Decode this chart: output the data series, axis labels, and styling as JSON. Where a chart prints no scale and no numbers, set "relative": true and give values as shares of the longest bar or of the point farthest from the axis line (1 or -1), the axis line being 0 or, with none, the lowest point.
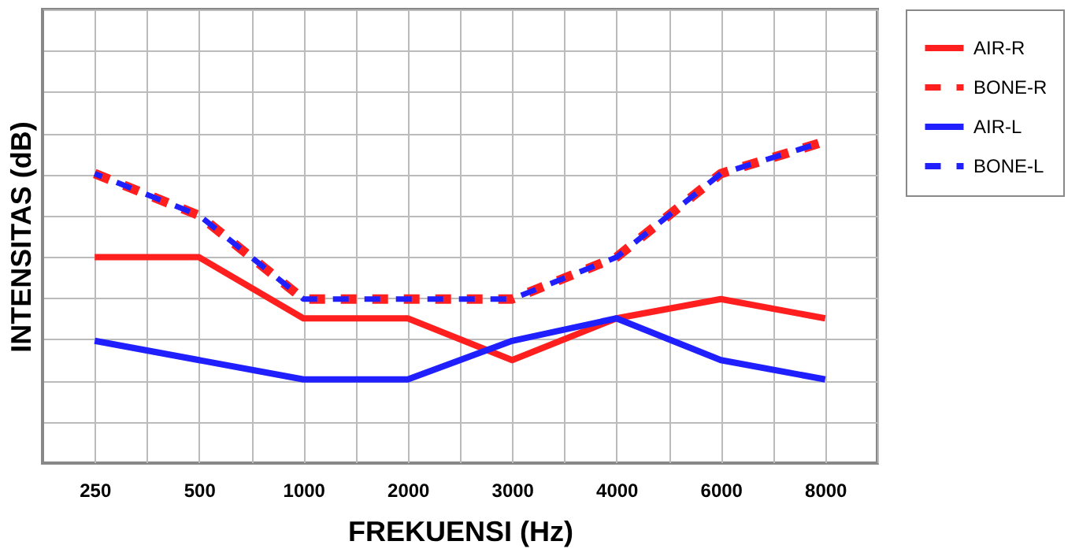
{
  "chart_data": {
    "type": "line",
    "xlabel": "FREKUENSI (Hz)",
    "ylabel": "INTENSITAS (dB)",
    "relative": true,
    "grid": true,
    "legend": "right",
    "marker": "none",
    "categories": [
      "250",
      "500",
      "1000",
      "2000",
      "3000",
      "4000",
      "6000",
      "8000"
    ],
    "series": [
      {
        "name": "AIR-R",
        "color": "#ff1f1f",
        "line_style": "solid",
        "values": [
          0.64,
          0.64,
          0.45,
          0.45,
          0.32,
          0.45,
          0.51,
          0.45
        ]
      },
      {
        "name": "BONE-R",
        "color": "#ff1f1f",
        "line_style": "dashed",
        "values": [
          0.9,
          0.77,
          0.51,
          0.51,
          0.51,
          0.64,
          0.9,
          1
        ]
      },
      {
        "name": "AIR-L",
        "color": "#1f1fff",
        "line_style": "solid",
        "values": [
          0.38,
          0.32,
          0.26,
          0.26,
          0.38,
          0.45,
          0.32,
          0.26
        ]
      },
      {
        "name": "BONE-L",
        "color": "#1f1fff",
        "line_style": "dashed",
        "values": [
          0.9,
          0.77,
          0.51,
          0.51,
          0.51,
          0.64,
          0.9,
          1
        ]
      }
    ]
  }
}
